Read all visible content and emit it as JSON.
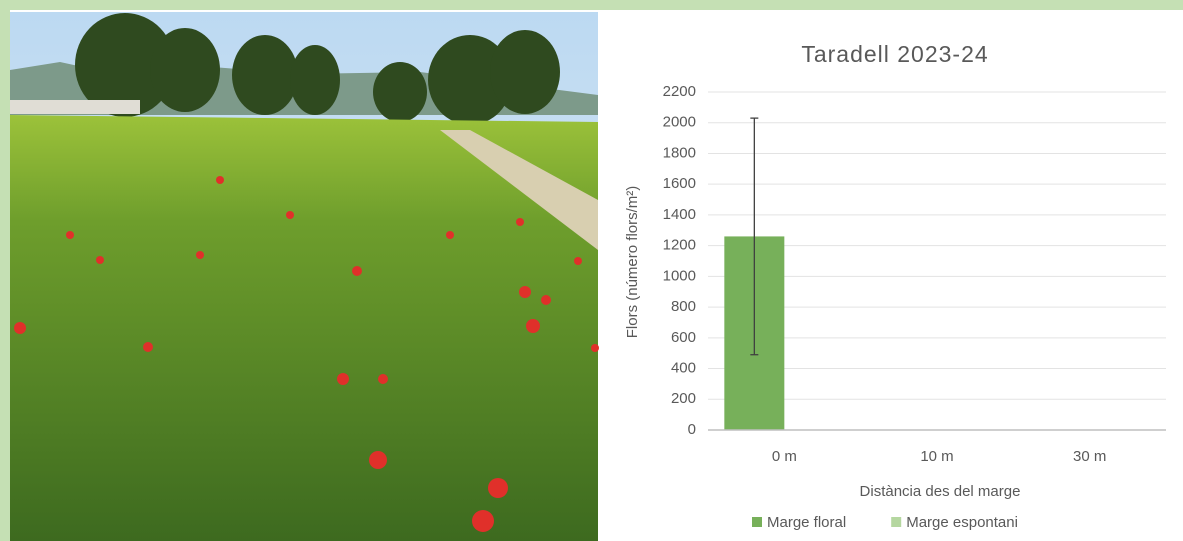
{
  "chart_data": {
    "type": "bar",
    "title": "Taradell 2023-24",
    "y_label": "Flors (número flors/m²)",
    "x_label": "Distància des del marge",
    "categories": [
      "0 m",
      "10 m",
      "30 m"
    ],
    "series": [
      {
        "name": "Marge floral",
        "color": "#77b05a",
        "values": [
          1260,
          0,
          0
        ],
        "errors": [
          770,
          null,
          null
        ]
      },
      {
        "name": "Marge espontani",
        "color": "#b5d7a0",
        "values": [
          0,
          0,
          0
        ]
      }
    ],
    "ylim": [
      0,
      2200
    ],
    "yticks": [
      0,
      200,
      400,
      600,
      800,
      1000,
      1200,
      1400,
      1600,
      1800,
      2000,
      2200
    ],
    "grid": true,
    "legend": "bottom"
  }
}
